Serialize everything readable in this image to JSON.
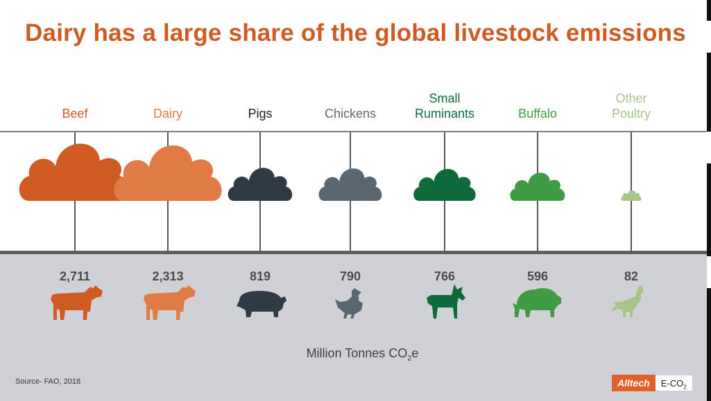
{
  "title": "Dairy has a large share of the global livestock emissions",
  "unit_label_main": "Million Tonnes CO",
  "unit_label_sub": "2",
  "unit_label_tail": "e",
  "source": "Source- FAO, 2018",
  "brand": {
    "name": "Alltech",
    "product_main": "E-CO",
    "product_sub": "2"
  },
  "colors": {
    "beef": "#cf5b22",
    "dairy": "#e07b45",
    "pigs": "#2f3a44",
    "chickens": "#5b6770",
    "small_ruminants": "#0e6a3a",
    "buffalo": "#3f9b44",
    "other_poultry": "#a7c586"
  },
  "chart_data": {
    "type": "bar",
    "title": "Dairy has a large share of the global livestock emissions",
    "ylabel": "Million Tonnes CO2e",
    "categories": [
      {
        "label_lines": [
          "Beef"
        ],
        "value": 2711,
        "value_label": "2,711",
        "color": "#cf5b22",
        "icon": "cow-icon"
      },
      {
        "label_lines": [
          "Dairy"
        ],
        "value": 2313,
        "value_label": "2,313",
        "color": "#e07b45",
        "icon": "cow-icon"
      },
      {
        "label_lines": [
          "Pigs"
        ],
        "value": 819,
        "value_label": "819",
        "color": "#2f3a44",
        "icon": "pig-icon"
      },
      {
        "label_lines": [
          "Chickens"
        ],
        "value": 790,
        "value_label": "790",
        "color": "#5b6770",
        "icon": "chicken-icon"
      },
      {
        "label_lines": [
          "Small",
          "Ruminants"
        ],
        "value": 766,
        "value_label": "766",
        "color": "#0e6a3a",
        "icon": "goat-icon"
      },
      {
        "label_lines": [
          "Buffalo"
        ],
        "value": 596,
        "value_label": "596",
        "color": "#3f9b44",
        "icon": "buffalo-icon"
      },
      {
        "label_lines": [
          "Other",
          "Poultry"
        ],
        "value": 82,
        "value_label": "82",
        "color": "#a7c586",
        "icon": "turkey-icon"
      }
    ]
  }
}
